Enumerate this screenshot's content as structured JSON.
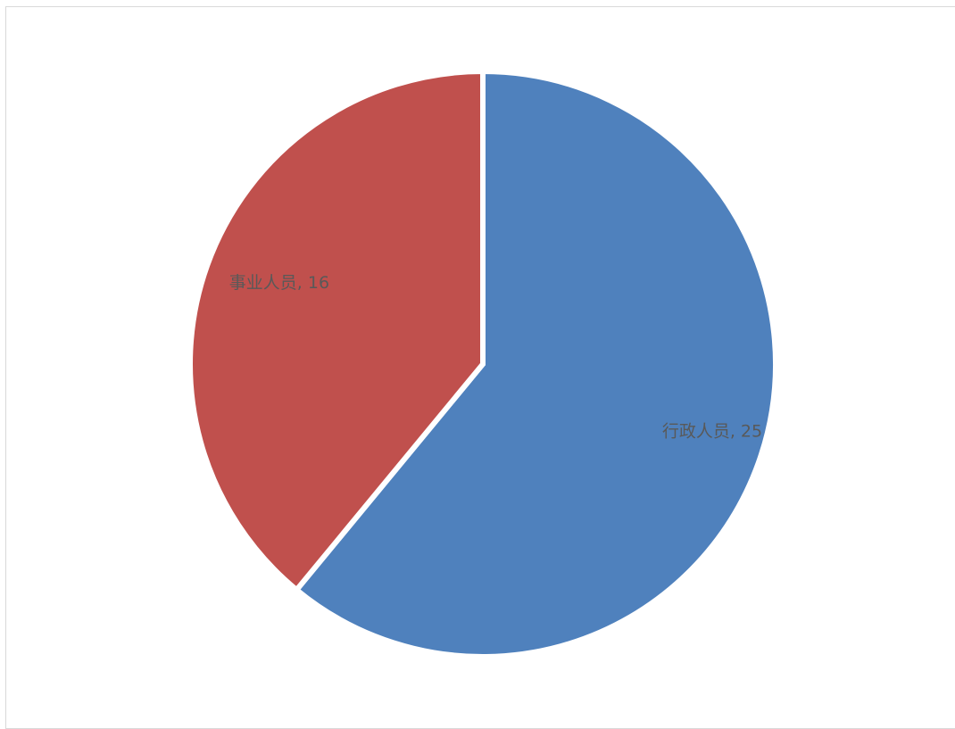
{
  "chart_data": {
    "type": "pie",
    "title": "",
    "categories": [
      "行政人员",
      "事业人员"
    ],
    "values": [
      25,
      16
    ],
    "colors": [
      "#4f81bd",
      "#c0504d"
    ],
    "data_labels": [
      "行政人员, 25",
      "事业人员, 16"
    ],
    "label_color": "#595959",
    "start_angle_deg": 0,
    "direction": "clockwise",
    "legend": "none"
  }
}
